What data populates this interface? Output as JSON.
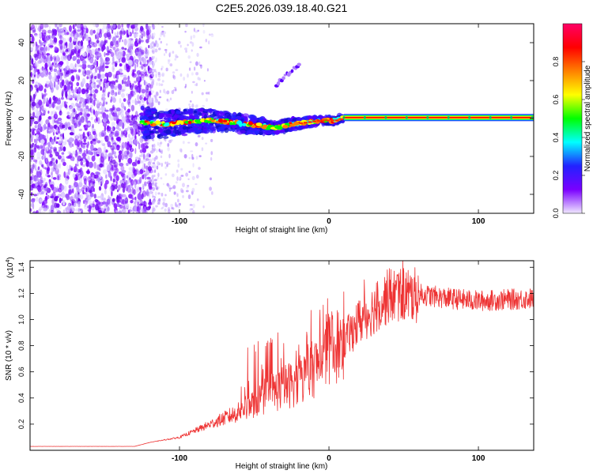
{
  "title": "C2E5.2026.039.18.40.G21",
  "chart_data": [
    {
      "type": "heatmap",
      "title": "C2E5.2026.039.18.40.G21",
      "xlabel": "Height of straight line (km)",
      "ylabel": "Frequency (Hz)",
      "xlim": [
        -200,
        137
      ],
      "ylim": [
        -50,
        50
      ],
      "xticks": [
        -100,
        0,
        100
      ],
      "yticks": [
        -40,
        -20,
        0,
        20,
        40
      ],
      "colorbar": {
        "label": "Normalized spectral amplitude",
        "range": [
          0,
          1
        ],
        "ticks": [
          "0.0",
          "0.2",
          "0.4",
          "0.6",
          "0.8"
        ],
        "colors": [
          "#f0e8ff",
          "#7a00ff",
          "#2222ff",
          "#00ffff",
          "#00ff00",
          "#ffff00",
          "#ff8000",
          "#ff0000",
          "#ff0066"
        ]
      },
      "features": {
        "noise_region_x": [
          -200,
          -118
        ],
        "stable_line_start_x": 10,
        "stable_line_frequency": 0.5,
        "track": [
          {
            "x": -125,
            "f": -2
          },
          {
            "x": -110,
            "f": -3
          },
          {
            "x": -95,
            "f": -2
          },
          {
            "x": -80,
            "f": -1
          },
          {
            "x": -65,
            "f": -2
          },
          {
            "x": -55,
            "f": -3
          },
          {
            "x": -45,
            "f": -4
          },
          {
            "x": -35,
            "f": -5
          },
          {
            "x": -25,
            "f": -3
          },
          {
            "x": -15,
            "f": -2
          },
          {
            "x": -5,
            "f": -1
          },
          {
            "x": 5,
            "f": -1
          },
          {
            "x": 10,
            "f": 0.5
          }
        ],
        "branch": [
          {
            "x": -35,
            "f": 18
          },
          {
            "x": -20,
            "f": 29
          }
        ]
      }
    },
    {
      "type": "line",
      "xlabel": "Height of straight line (km)",
      "ylabel": "SNR (10 * v/v)",
      "exponent_label": "(x10",
      "exponent": "4",
      "exponent_close": ")",
      "xlim": [
        -200,
        137
      ],
      "ylim": [
        0,
        1.45
      ],
      "xticks": [
        -100,
        0,
        100
      ],
      "yticks": [
        0.2,
        0.4,
        0.6,
        0.8,
        1.0,
        1.2,
        1.4
      ],
      "color": "#ee3333",
      "envelope": [
        {
          "x": -200,
          "y": 0.03
        },
        {
          "x": -130,
          "y": 0.03
        },
        {
          "x": -120,
          "y": 0.06
        },
        {
          "x": -100,
          "y": 0.1
        },
        {
          "x": -80,
          "y": 0.2
        },
        {
          "x": -60,
          "y": 0.3
        },
        {
          "x": -40,
          "y": 0.45
        },
        {
          "x": -20,
          "y": 0.55
        },
        {
          "x": -10,
          "y": 0.65
        },
        {
          "x": 0,
          "y": 0.8
        },
        {
          "x": 10,
          "y": 0.85
        },
        {
          "x": 20,
          "y": 1.0
        },
        {
          "x": 30,
          "y": 1.1
        },
        {
          "x": 40,
          "y": 1.2
        },
        {
          "x": 50,
          "y": 1.22
        },
        {
          "x": 60,
          "y": 1.2
        },
        {
          "x": 80,
          "y": 1.17
        },
        {
          "x": 100,
          "y": 1.15
        },
        {
          "x": 137,
          "y": 1.17
        }
      ]
    }
  ]
}
